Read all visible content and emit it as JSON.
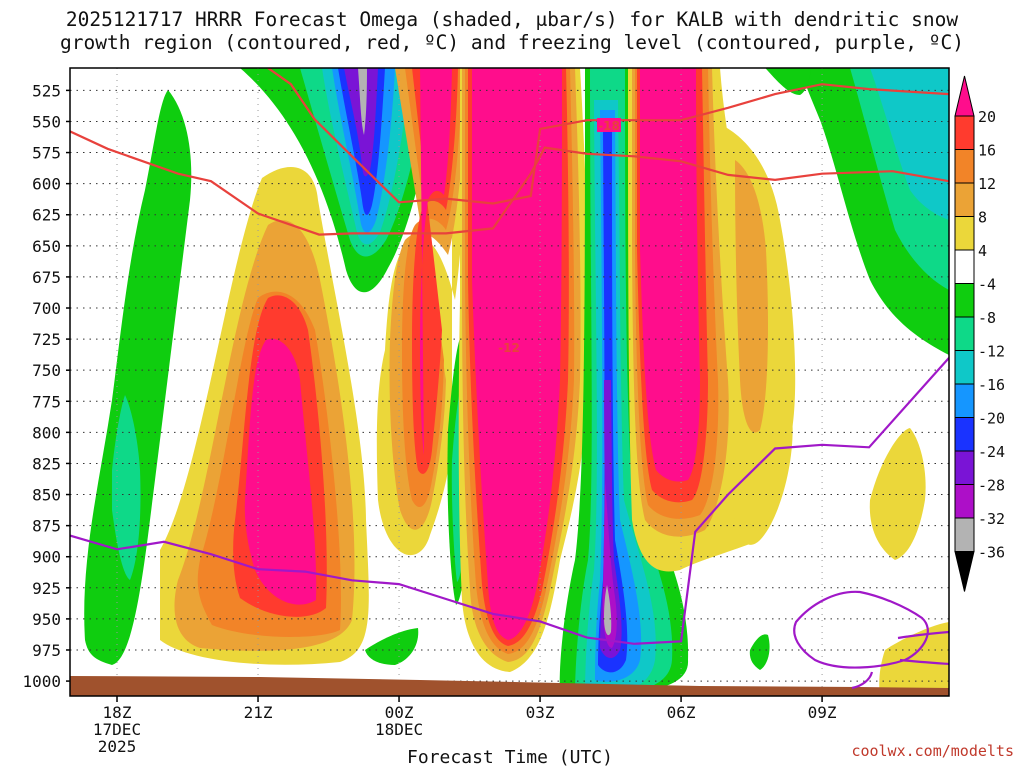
{
  "chart_data": {
    "type": "heatmap",
    "title_line1": "2025121717 HRRR Forecast Omega (shaded, μbar/s) for KALB with dendritic snow",
    "title_line2": "growth region (contoured, red, ºC) and freezing level (contoured, purple, ºC)",
    "xlabel": "Forecast Time (UTC)",
    "credit": "coolwx.com/modelts",
    "x_ticks": [
      {
        "hour": 18,
        "lines": [
          "18Z",
          "17DEC",
          "2025"
        ]
      },
      {
        "hour": 21,
        "lines": [
          "21Z"
        ]
      },
      {
        "hour": 24,
        "lines": [
          "00Z",
          "18DEC"
        ]
      },
      {
        "hour": 27,
        "lines": [
          "03Z"
        ]
      },
      {
        "hour": 30,
        "lines": [
          "06Z"
        ]
      },
      {
        "hour": 33,
        "lines": [
          "09Z"
        ]
      }
    ],
    "xlim": [
      17.0,
      35.7
    ],
    "y_ticks": [
      525,
      550,
      575,
      600,
      625,
      650,
      675,
      700,
      725,
      750,
      775,
      800,
      825,
      850,
      875,
      900,
      925,
      950,
      975,
      1000
    ],
    "ylim_mb": [
      507,
      1012
    ],
    "colorbar": {
      "labels": [
        20,
        16,
        12,
        8,
        4,
        -4,
        -8,
        -12,
        -16,
        -20,
        -24,
        -28,
        -32,
        -36
      ],
      "colors": [
        "#ff0d8c",
        "#ff3b2e",
        "#f28428",
        "#eba336",
        "#ebd73a",
        "#ffffff",
        "#0fcd0f",
        "#0ed988",
        "#0fc8c8",
        "#1596ff",
        "#1a33ff",
        "#7a14d6",
        "#ad0fc8",
        "#b3b3b3",
        "#000000"
      ]
    },
    "contour_labels": {
      "dgz_upper": "-18",
      "dgz_lower": "-12"
    },
    "series": [
      {
        "name": "-18C isotherm (DGZ top)",
        "points": [
          [
            17.0,
            558
          ],
          [
            17.8,
            572
          ],
          [
            19.3,
            592
          ],
          [
            20.0,
            598
          ],
          [
            21.0,
            624
          ],
          [
            22.3,
            641
          ],
          [
            23.0,
            640
          ],
          [
            24.0,
            640
          ],
          [
            25.0,
            640
          ],
          [
            26.0,
            636
          ],
          [
            26.8,
            592
          ],
          [
            27.1,
            571
          ],
          [
            28.0,
            576
          ],
          [
            29.0,
            578
          ],
          [
            30.0,
            582
          ],
          [
            31.0,
            593
          ],
          [
            32.0,
            597
          ],
          [
            33.0,
            592
          ],
          [
            34.5,
            590
          ],
          [
            35.7,
            598
          ]
        ]
      },
      {
        "name": "-12C isotherm (DGZ bottom)",
        "points": [
          [
            20.8,
            496
          ],
          [
            21.7,
            520
          ],
          [
            22.2,
            548
          ],
          [
            23.0,
            578
          ],
          [
            24.0,
            615
          ],
          [
            25.0,
            612
          ],
          [
            26.0,
            616
          ],
          [
            26.8,
            610
          ],
          [
            27.0,
            556
          ],
          [
            28.0,
            549
          ],
          [
            29.0,
            549
          ],
          [
            30.0,
            549
          ],
          [
            31.0,
            539
          ],
          [
            32.0,
            528
          ],
          [
            33.0,
            520
          ],
          [
            34.0,
            524
          ],
          [
            35.7,
            528
          ]
        ]
      },
      {
        "name": "0C freezing level",
        "points": [
          [
            17.0,
            883
          ],
          [
            18.0,
            894
          ],
          [
            19.0,
            888
          ],
          [
            20.0,
            898
          ],
          [
            21.0,
            910
          ],
          [
            22.0,
            912
          ],
          [
            23.0,
            919
          ],
          [
            24.0,
            922
          ],
          [
            25.0,
            934
          ],
          [
            26.0,
            946
          ],
          [
            27.0,
            952
          ],
          [
            28.0,
            965
          ],
          [
            29.0,
            970
          ],
          [
            30.0,
            968
          ],
          [
            30.3,
            880
          ],
          [
            31.0,
            850
          ],
          [
            32.0,
            813
          ],
          [
            33.0,
            810
          ],
          [
            34.0,
            812
          ],
          [
            35.7,
            740
          ]
        ]
      }
    ]
  }
}
